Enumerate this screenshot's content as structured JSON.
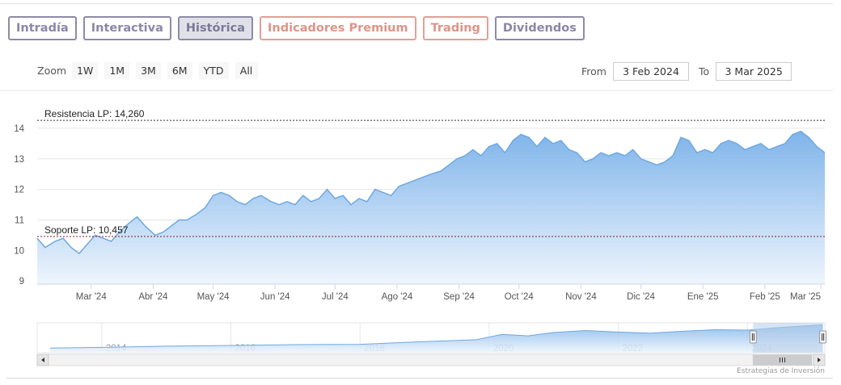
{
  "tabs": [
    {
      "label": "Intradía",
      "variant": "normal"
    },
    {
      "label": "Interactiva",
      "variant": "normal"
    },
    {
      "label": "Histórica",
      "variant": "active"
    },
    {
      "label": "Indicadores Premium",
      "variant": "premium"
    },
    {
      "label": "Trading",
      "variant": "premium"
    },
    {
      "label": "Dividendos",
      "variant": "normal"
    }
  ],
  "range_selector": {
    "zoom_label": "Zoom",
    "buttons": [
      "1W",
      "1M",
      "3M",
      "6M",
      "YTD",
      "All"
    ],
    "from_label": "From",
    "from_value": "3 Feb 2024",
    "to_label": "To",
    "to_value": "3 Mar 2025"
  },
  "credits": "Estrategias de Inversión",
  "colors": {
    "line": "#6fa8e0",
    "area_top": "#7fb4ea",
    "area_bottom": "#eef5fd",
    "resistance": "#333333",
    "support": "#8b1a2a",
    "navigator_mask": "#b8cdea"
  },
  "chart_data": {
    "type": "area",
    "title": "",
    "xlabel": "",
    "ylabel": "",
    "ylim": [
      8.9,
      14.5
    ],
    "y_ticks": [
      9,
      10,
      11,
      12,
      13,
      14
    ],
    "x_range": [
      "2024-02-03",
      "2025-03-03"
    ],
    "x_ticks": [
      {
        "date": "2024-03-01",
        "label": "Mar '24"
      },
      {
        "date": "2024-04-01",
        "label": "Abr '24"
      },
      {
        "date": "2024-05-01",
        "label": "May '24"
      },
      {
        "date": "2024-06-01",
        "label": "Jun '24"
      },
      {
        "date": "2024-07-01",
        "label": "Jul '24"
      },
      {
        "date": "2024-08-01",
        "label": "Ago '24"
      },
      {
        "date": "2024-09-01",
        "label": "Sep '24"
      },
      {
        "date": "2024-10-01",
        "label": "Oct '24"
      },
      {
        "date": "2024-11-01",
        "label": "Nov '24"
      },
      {
        "date": "2024-12-01",
        "label": "Dic '24"
      },
      {
        "date": "2025-01-01",
        "label": "Ene '25"
      },
      {
        "date": "2025-02-01",
        "label": "Feb '25"
      },
      {
        "date": "2025-03-01",
        "label": "Mar '25"
      }
    ],
    "plot_lines": [
      {
        "label": "Resistencia LP: 14,260",
        "value": 14.26,
        "style": "dashed"
      },
      {
        "label": "Soporte LP: 10,457",
        "value": 10.457,
        "style": "dashed"
      }
    ],
    "series": [
      {
        "x": [
          "2024-02-03",
          "2024-02-07",
          "2024-02-12",
          "2024-02-16",
          "2024-02-20",
          "2024-02-24",
          "2024-02-28",
          "2024-03-03",
          "2024-03-07",
          "2024-03-11",
          "2024-03-15",
          "2024-03-20",
          "2024-03-24",
          "2024-03-28",
          "2024-04-02",
          "2024-04-06",
          "2024-04-10",
          "2024-04-14",
          "2024-04-18",
          "2024-04-23",
          "2024-04-27",
          "2024-05-01",
          "2024-05-05",
          "2024-05-09",
          "2024-05-13",
          "2024-05-17",
          "2024-05-21",
          "2024-05-25",
          "2024-05-30",
          "2024-06-03",
          "2024-06-07",
          "2024-06-11",
          "2024-06-15",
          "2024-06-19",
          "2024-06-23",
          "2024-06-27",
          "2024-07-01",
          "2024-07-05",
          "2024-07-09",
          "2024-07-13",
          "2024-07-17",
          "2024-07-21",
          "2024-07-25",
          "2024-07-29",
          "2024-08-02",
          "2024-08-06",
          "2024-08-10",
          "2024-08-14",
          "2024-08-18",
          "2024-08-23",
          "2024-08-27",
          "2024-08-31",
          "2024-09-04",
          "2024-09-08",
          "2024-09-12",
          "2024-09-16",
          "2024-09-20",
          "2024-09-24",
          "2024-09-28",
          "2024-10-02",
          "2024-10-06",
          "2024-10-10",
          "2024-10-14",
          "2024-10-18",
          "2024-10-22",
          "2024-10-26",
          "2024-10-30",
          "2024-11-03",
          "2024-11-07",
          "2024-11-11",
          "2024-11-15",
          "2024-11-19",
          "2024-11-23",
          "2024-11-27",
          "2024-12-01",
          "2024-12-05",
          "2024-12-09",
          "2024-12-13",
          "2024-12-17",
          "2024-12-21",
          "2024-12-25",
          "2024-12-29",
          "2025-01-02",
          "2025-01-06",
          "2025-01-10",
          "2025-01-14",
          "2025-01-18",
          "2025-01-22",
          "2025-01-26",
          "2025-01-30",
          "2025-02-03",
          "2025-02-07",
          "2025-02-11",
          "2025-02-15",
          "2025-02-19",
          "2025-02-23",
          "2025-02-27",
          "2025-03-03"
        ],
        "values": [
          10.4,
          10.1,
          10.3,
          10.4,
          10.1,
          9.9,
          10.2,
          10.5,
          10.4,
          10.3,
          10.6,
          10.9,
          11.1,
          10.8,
          10.5,
          10.6,
          10.8,
          11.0,
          11.0,
          11.2,
          11.4,
          11.8,
          11.9,
          11.8,
          11.6,
          11.5,
          11.7,
          11.8,
          11.6,
          11.5,
          11.6,
          11.5,
          11.8,
          11.6,
          11.7,
          12.0,
          11.7,
          11.8,
          11.5,
          11.7,
          11.6,
          12.0,
          11.9,
          11.8,
          12.1,
          12.2,
          12.3,
          12.4,
          12.5,
          12.6,
          12.8,
          13.0,
          13.1,
          13.3,
          13.1,
          13.4,
          13.5,
          13.2,
          13.6,
          13.8,
          13.7,
          13.4,
          13.7,
          13.5,
          13.6,
          13.3,
          13.2,
          12.9,
          13.0,
          13.2,
          13.1,
          13.2,
          13.1,
          13.3,
          13.0,
          12.9,
          12.8,
          12.9,
          13.1,
          13.7,
          13.6,
          13.2,
          13.3,
          13.2,
          13.5,
          13.6,
          13.5,
          13.3,
          13.4,
          13.5,
          13.3,
          13.4,
          13.5,
          13.8,
          13.9,
          13.7,
          13.4,
          13.2
        ]
      }
    ],
    "navigator": {
      "x_ticks": [
        2014,
        2016,
        2018,
        2020,
        2022,
        2024
      ],
      "x_range": [
        2013.0,
        2025.2
      ],
      "selected_range": [
        2024.09,
        2025.17
      ],
      "points": [
        {
          "year": 2013.2,
          "value": 8.2
        },
        {
          "year": 2014.0,
          "value": 8.4
        },
        {
          "year": 2015.0,
          "value": 8.7
        },
        {
          "year": 2016.0,
          "value": 8.9
        },
        {
          "year": 2017.0,
          "value": 9.1
        },
        {
          "year": 2018.0,
          "value": 9.2
        },
        {
          "year": 2019.0,
          "value": 9.9
        },
        {
          "year": 2019.8,
          "value": 10.4
        },
        {
          "year": 2020.2,
          "value": 11.8
        },
        {
          "year": 2020.6,
          "value": 11.4
        },
        {
          "year": 2021.0,
          "value": 12.3
        },
        {
          "year": 2021.5,
          "value": 12.8
        },
        {
          "year": 2022.0,
          "value": 12.4
        },
        {
          "year": 2022.5,
          "value": 12.1
        },
        {
          "year": 2023.0,
          "value": 12.6
        },
        {
          "year": 2023.5,
          "value": 13.0
        },
        {
          "year": 2024.0,
          "value": 12.9
        },
        {
          "year": 2024.5,
          "value": 13.6
        },
        {
          "year": 2025.17,
          "value": 14.3
        }
      ],
      "ylim": [
        7.0,
        14.8
      ]
    }
  }
}
